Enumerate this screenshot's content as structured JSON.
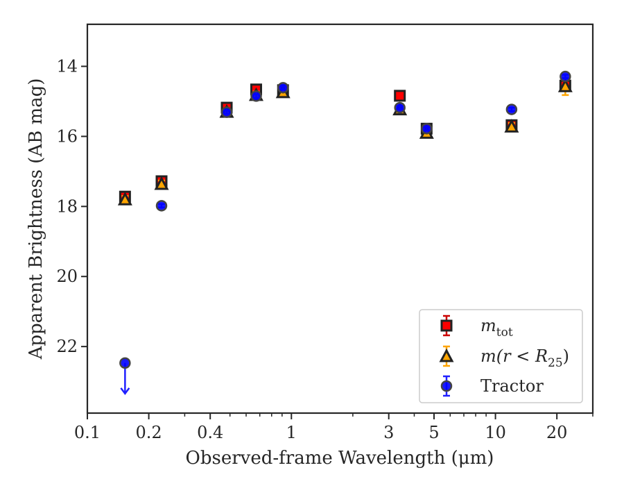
{
  "chart_data": {
    "type": "scatter",
    "xlabel": "Observed-frame Wavelength (μm)",
    "ylabel": "Apparent Brightness (AB mag)",
    "x_scale": "log",
    "xlim": [
      0.1,
      30
    ],
    "ylim": [
      23.9,
      12.8
    ],
    "y_inverted": true,
    "grid": false,
    "legend_position": "lower-right",
    "x_ticks": [
      {
        "value": 0.1,
        "label": "0.1"
      },
      {
        "value": 0.2,
        "label": "0.2"
      },
      {
        "value": 0.4,
        "label": "0.4"
      },
      {
        "value": 1,
        "label": "1"
      },
      {
        "value": 3,
        "label": "3"
      },
      {
        "value": 5,
        "label": "5"
      },
      {
        "value": 10,
        "label": "10"
      },
      {
        "value": 20,
        "label": "20"
      }
    ],
    "y_ticks": [
      {
        "value": 14,
        "label": "14"
      },
      {
        "value": 16,
        "label": "16"
      },
      {
        "value": 18,
        "label": "18"
      },
      {
        "value": 20,
        "label": "20"
      },
      {
        "value": 22,
        "label": "22"
      }
    ],
    "series": [
      {
        "name": "m_tot",
        "legend_main": "m",
        "legend_sub": "tot",
        "marker": "square",
        "color": "#ff0000",
        "errcolor": "#cc0000",
        "points": [
          {
            "x": 0.153,
            "y": 17.72,
            "err": 0.12
          },
          {
            "x": 0.231,
            "y": 17.28,
            "err": 0.12
          },
          {
            "x": 0.482,
            "y": 15.18,
            "err": 0.12
          },
          {
            "x": 0.672,
            "y": 14.66,
            "err": 0.12
          },
          {
            "x": 0.91,
            "y": 14.68,
            "err": 0.1
          },
          {
            "x": 3.4,
            "y": 14.84,
            "err": 0.1
          },
          {
            "x": 4.6,
            "y": 15.78,
            "err": 0.1
          },
          {
            "x": 12.0,
            "y": 15.68,
            "err": 0.1
          },
          {
            "x": 22.0,
            "y": 14.55,
            "err": 0.1
          }
        ]
      },
      {
        "name": "m(r < R25)",
        "legend_main": "m(r < R",
        "legend_sub": "25",
        "legend_end": ")",
        "marker": "triangle",
        "color": "#ffa500",
        "errcolor": "#ffa500",
        "points": [
          {
            "x": 0.153,
            "y": 17.8,
            "err": 0.1
          },
          {
            "x": 0.231,
            "y": 17.36,
            "err": 0.1
          },
          {
            "x": 0.482,
            "y": 15.3,
            "err": 0.1
          },
          {
            "x": 0.672,
            "y": 14.82,
            "err": 0.1
          },
          {
            "x": 0.91,
            "y": 14.74,
            "err": 0.1
          },
          {
            "x": 3.4,
            "y": 15.23,
            "err": 0.1
          },
          {
            "x": 4.6,
            "y": 15.9,
            "err": 0.1
          },
          {
            "x": 12.0,
            "y": 15.72,
            "err": 0.1
          },
          {
            "x": 22.0,
            "y": 14.57,
            "err": 0.25
          }
        ]
      },
      {
        "name": "Tractor",
        "legend_main": "Tractor",
        "marker": "circle",
        "color": "#0000ff",
        "errcolor": "#2020ff",
        "points": [
          {
            "x": 0.153,
            "y": 22.47,
            "upper_limit": true
          },
          {
            "x": 0.231,
            "y": 17.98,
            "err": 0.05
          },
          {
            "x": 0.482,
            "y": 15.31,
            "err": 0.05
          },
          {
            "x": 0.672,
            "y": 14.85,
            "err": 0.05
          },
          {
            "x": 0.91,
            "y": 14.61,
            "err": 0.05
          },
          {
            "x": 3.4,
            "y": 15.18,
            "err": 0.05
          },
          {
            "x": 4.6,
            "y": 15.78,
            "err": 0.05
          },
          {
            "x": 12.0,
            "y": 15.23,
            "err": 0.05
          },
          {
            "x": 22.0,
            "y": 14.29,
            "err": 0.05
          }
        ]
      }
    ]
  }
}
